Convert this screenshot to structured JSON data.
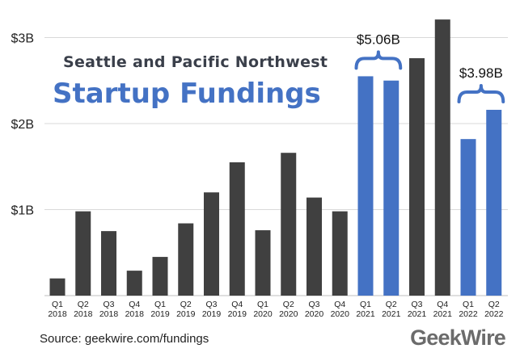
{
  "title_line1": "Seattle and Pacific Northwest",
  "title_line2": "Startup Fundings",
  "source": "Source: geekwire.com/fundings",
  "logo": "GeekWire",
  "colors": {
    "gray": "#404040",
    "blue": "#4472c4",
    "grid": "#d9d9d9",
    "axis_text": "#222222"
  },
  "chart_data": {
    "type": "bar",
    "ylabel": "",
    "xlabel": "",
    "ylim": [
      0,
      3.3
    ],
    "yticks": [
      {
        "value": 1,
        "label": "$1B"
      },
      {
        "value": 2,
        "label": "$2B"
      },
      {
        "value": 3,
        "label": "$3B"
      }
    ],
    "categories": [
      {
        "quarter": "Q1",
        "year": "2018"
      },
      {
        "quarter": "Q2",
        "year": "2018"
      },
      {
        "quarter": "Q3",
        "year": "2018"
      },
      {
        "quarter": "Q4",
        "year": "2018"
      },
      {
        "quarter": "Q1",
        "year": "2019"
      },
      {
        "quarter": "Q2",
        "year": "2019"
      },
      {
        "quarter": "Q3",
        "year": "2019"
      },
      {
        "quarter": "Q4",
        "year": "2019"
      },
      {
        "quarter": "Q1",
        "year": "2020"
      },
      {
        "quarter": "Q2",
        "year": "2020"
      },
      {
        "quarter": "Q3",
        "year": "2020"
      },
      {
        "quarter": "Q4",
        "year": "2020"
      },
      {
        "quarter": "Q1",
        "year": "2021"
      },
      {
        "quarter": "Q2",
        "year": "2021"
      },
      {
        "quarter": "Q3",
        "year": "2021"
      },
      {
        "quarter": "Q4",
        "year": "2021"
      },
      {
        "quarter": "Q1",
        "year": "2022"
      },
      {
        "quarter": "Q2",
        "year": "2022"
      }
    ],
    "values": [
      0.2,
      0.98,
      0.75,
      0.29,
      0.45,
      0.84,
      1.2,
      1.55,
      0.76,
      1.66,
      1.14,
      0.98,
      2.55,
      2.5,
      2.76,
      3.21,
      1.82,
      2.16
    ],
    "highlighted": [
      false,
      false,
      false,
      false,
      false,
      false,
      false,
      false,
      false,
      false,
      false,
      false,
      true,
      true,
      false,
      false,
      true,
      true
    ],
    "annotations": [
      {
        "label": "$5.06B",
        "from": 12,
        "to": 13
      },
      {
        "label": "$3.98B",
        "from": 16,
        "to": 17
      }
    ]
  }
}
